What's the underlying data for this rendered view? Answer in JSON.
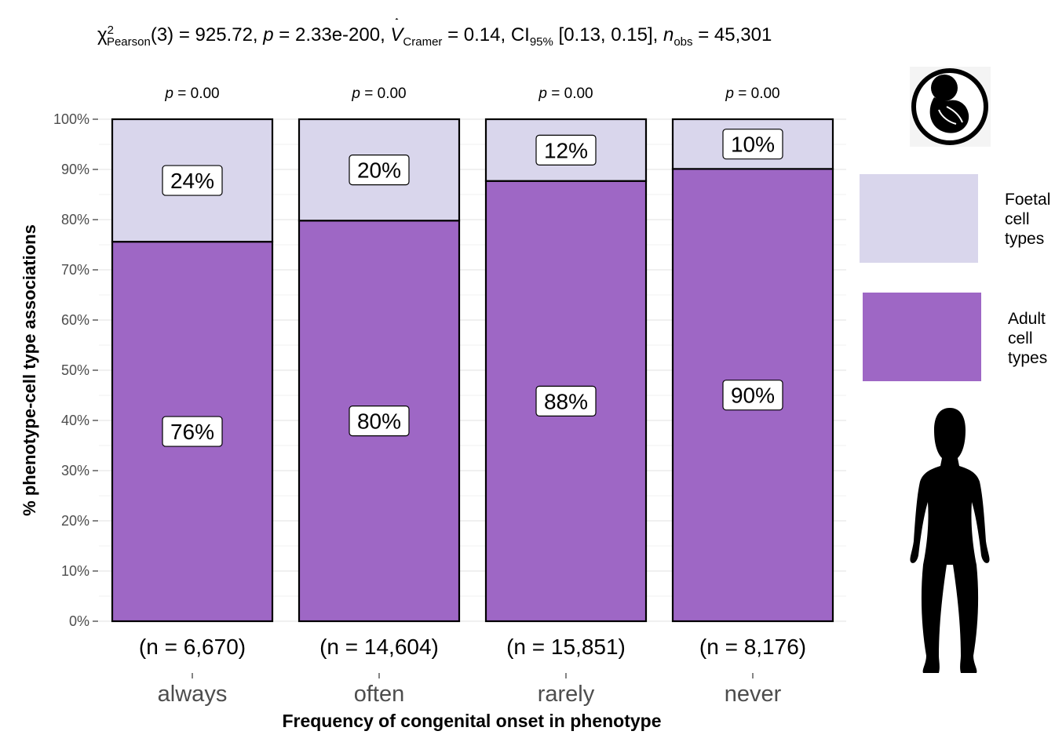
{
  "stat_title": {
    "chi": "χ",
    "chi_sup": "2",
    "chi_sub": "Pearson",
    "df": "(3) = 925.72, ",
    "p_label": "p",
    "p_value": " = 2.33e-200, ",
    "v_label": "V",
    "v_sub": "Cramer",
    "v_value": " = 0.14, CI",
    "ci_sub": "95%",
    "ci_value": " [0.13, 0.15], ",
    "n_label": "n",
    "n_sub": "obs",
    "n_value": " = 45,301"
  },
  "colors": {
    "adult": "#9E67C5",
    "foetal": "#D9D6EC",
    "grid": "#EBEBEB",
    "label_text": "#000000",
    "axis_text": "#4D4D4D"
  },
  "icons": {
    "top": "fetus-icon",
    "bottom": "human-silhouette-icon"
  },
  "chart_data": {
    "type": "bar",
    "stacked": "percent",
    "xlabel": "Frequency of congenital onset in phenotype",
    "ylabel": "% phenotype-cell type associations",
    "ylim": [
      0,
      100
    ],
    "yticks": [
      "0%",
      "10%",
      "20%",
      "30%",
      "40%",
      "50%",
      "60%",
      "70%",
      "80%",
      "90%",
      "100%"
    ],
    "categories": [
      "always",
      "often",
      "rarely",
      "never"
    ],
    "counts": [
      "(n = 6,670)",
      "(n = 14,604)",
      "(n = 15,851)",
      "(n = 8,176)"
    ],
    "pvalues": [
      "p = 0.00",
      "p = 0.00",
      "p = 0.00",
      "p = 0.00"
    ],
    "series": [
      {
        "name": "Adult cell types",
        "values": [
          75.6,
          79.8,
          87.7,
          90.1
        ],
        "labels": [
          "76%",
          "80%",
          "88%",
          "90%"
        ]
      },
      {
        "name": "Foetal cell types",
        "values": [
          24.4,
          20.2,
          12.3,
          9.9
        ],
        "labels": [
          "24%",
          "20%",
          "12%",
          "10%"
        ]
      }
    ],
    "legend": {
      "position": "right",
      "entries": [
        "Foetal cell types",
        "Adult cell types"
      ]
    },
    "grid": true
  }
}
